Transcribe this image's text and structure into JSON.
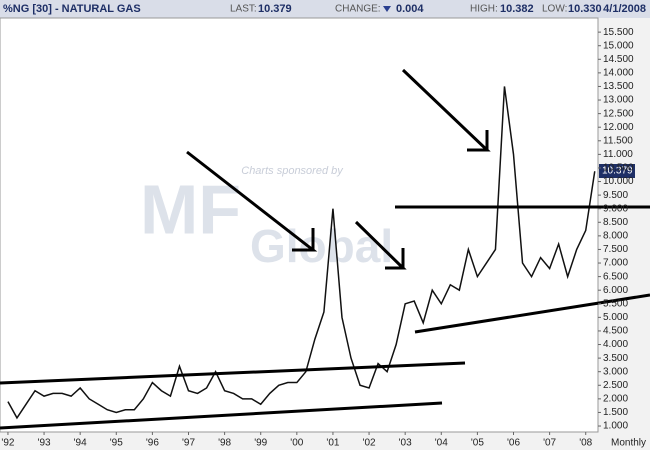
{
  "chart_data": {
    "type": "line",
    "header": {
      "symbol": "%NG [30] - NATURAL GAS",
      "last_label": "LAST:",
      "last": "10.379",
      "change_label": "CHANGE:",
      "change": "0.004",
      "high_label": "HIGH:",
      "high": "10.382",
      "low_label": "LOW:",
      "low": "10.330",
      "date": "4/1/2008"
    },
    "sponsor_text": "Charts sponsored by",
    "sponsor_logo": [
      "MF",
      "Global"
    ],
    "period": "Monthly",
    "x": [
      1992.0,
      1992.25,
      1992.5,
      1992.75,
      1993.0,
      1993.25,
      1993.5,
      1993.75,
      1994.0,
      1994.25,
      1994.5,
      1994.75,
      1995.0,
      1995.25,
      1995.5,
      1995.75,
      1996.0,
      1996.25,
      1996.5,
      1996.75,
      1997.0,
      1997.25,
      1997.5,
      1997.75,
      1998.0,
      1998.25,
      1998.5,
      1998.75,
      1999.0,
      1999.25,
      1999.5,
      1999.75,
      2000.0,
      2000.25,
      2000.5,
      2000.75,
      2001.0,
      2001.25,
      2001.5,
      2001.75,
      2002.0,
      2002.25,
      2002.5,
      2002.75,
      2003.0,
      2003.25,
      2003.5,
      2003.75,
      2004.0,
      2004.25,
      2004.5,
      2004.75,
      2005.0,
      2005.25,
      2005.5,
      2005.75,
      2006.0,
      2006.25,
      2006.5,
      2006.75,
      2007.0,
      2007.25,
      2007.5,
      2007.75,
      2008.0,
      2008.25
    ],
    "series": [
      {
        "color": "#111111",
        "values": [
          1.9,
          1.3,
          1.8,
          2.3,
          2.1,
          2.2,
          2.2,
          2.1,
          2.4,
          2.0,
          1.8,
          1.6,
          1.5,
          1.6,
          1.6,
          2.0,
          2.6,
          2.3,
          2.1,
          3.2,
          2.3,
          2.2,
          2.4,
          3.0,
          2.3,
          2.2,
          2.0,
          2.0,
          1.8,
          2.2,
          2.5,
          2.6,
          2.6,
          3.0,
          4.2,
          5.2,
          9.0,
          5.0,
          3.5,
          2.5,
          2.4,
          3.3,
          3.0,
          4.0,
          5.5,
          5.6,
          4.8,
          6.0,
          5.5,
          6.2,
          6.0,
          7.5,
          6.5,
          7.0,
          7.5,
          13.5,
          11.0,
          7.0,
          6.5,
          7.2,
          6.8,
          7.7,
          6.5,
          7.5,
          8.2,
          10.379
        ]
      }
    ],
    "xlim": [
      1991.78,
      2008.34
    ],
    "xticks": [
      {
        "value": 1992,
        "label": "'92"
      },
      {
        "value": 1993,
        "label": "'93"
      },
      {
        "value": 1994,
        "label": "'94"
      },
      {
        "value": 1995,
        "label": "'95"
      },
      {
        "value": 1996,
        "label": "'96"
      },
      {
        "value": 1997,
        "label": "'97"
      },
      {
        "value": 1998,
        "label": "'98"
      },
      {
        "value": 1999,
        "label": "'99"
      },
      {
        "value": 2000,
        "label": "'00"
      },
      {
        "value": 2001,
        "label": "'01"
      },
      {
        "value": 2002,
        "label": "'02"
      },
      {
        "value": 2003,
        "label": "'03"
      },
      {
        "value": 2004,
        "label": "'04"
      },
      {
        "value": 2005,
        "label": "'05"
      },
      {
        "value": 2006,
        "label": "'06"
      },
      {
        "value": 2007,
        "label": "'07"
      },
      {
        "value": 2008,
        "label": "'08"
      }
    ],
    "ylim": [
      0.78,
      16.02
    ],
    "yticks": [
      {
        "value": 1,
        "label": "1.000"
      },
      {
        "value": 1.5,
        "label": "1.500"
      },
      {
        "value": 2,
        "label": "2.000"
      },
      {
        "value": 2.5,
        "label": "2.500"
      },
      {
        "value": 3,
        "label": "3.000"
      },
      {
        "value": 3.5,
        "label": "3.500"
      },
      {
        "value": 4,
        "label": "4.000"
      },
      {
        "value": 4.5,
        "label": "4.500"
      },
      {
        "value": 5,
        "label": "5.000"
      },
      {
        "value": 5.5,
        "label": "5.500"
      },
      {
        "value": 6,
        "label": "6.000"
      },
      {
        "value": 6.5,
        "label": "6.500"
      },
      {
        "value": 7,
        "label": "7.000"
      },
      {
        "value": 7.5,
        "label": "7.500"
      },
      {
        "value": 8,
        "label": "8.000"
      },
      {
        "value": 8.5,
        "label": "8.500"
      },
      {
        "value": 9,
        "label": "9.000"
      },
      {
        "value": 9.5,
        "label": "9.500"
      },
      {
        "value": 10,
        "label": "10.000"
      },
      {
        "value": 10.5,
        "label": "10.500"
      },
      {
        "value": 11,
        "label": "11.000"
      },
      {
        "value": 11.5,
        "label": "11.500"
      },
      {
        "value": 12,
        "label": "12.000"
      },
      {
        "value": 12.5,
        "label": "12.500"
      },
      {
        "value": 13,
        "label": "13.000"
      },
      {
        "value": 13.5,
        "label": "13.500"
      },
      {
        "value": 14,
        "label": "14.000"
      },
      {
        "value": 14.5,
        "label": "14.500"
      },
      {
        "value": 15,
        "label": "15.000"
      },
      {
        "value": 15.5,
        "label": "15.500"
      }
    ],
    "grid": false
  }
}
